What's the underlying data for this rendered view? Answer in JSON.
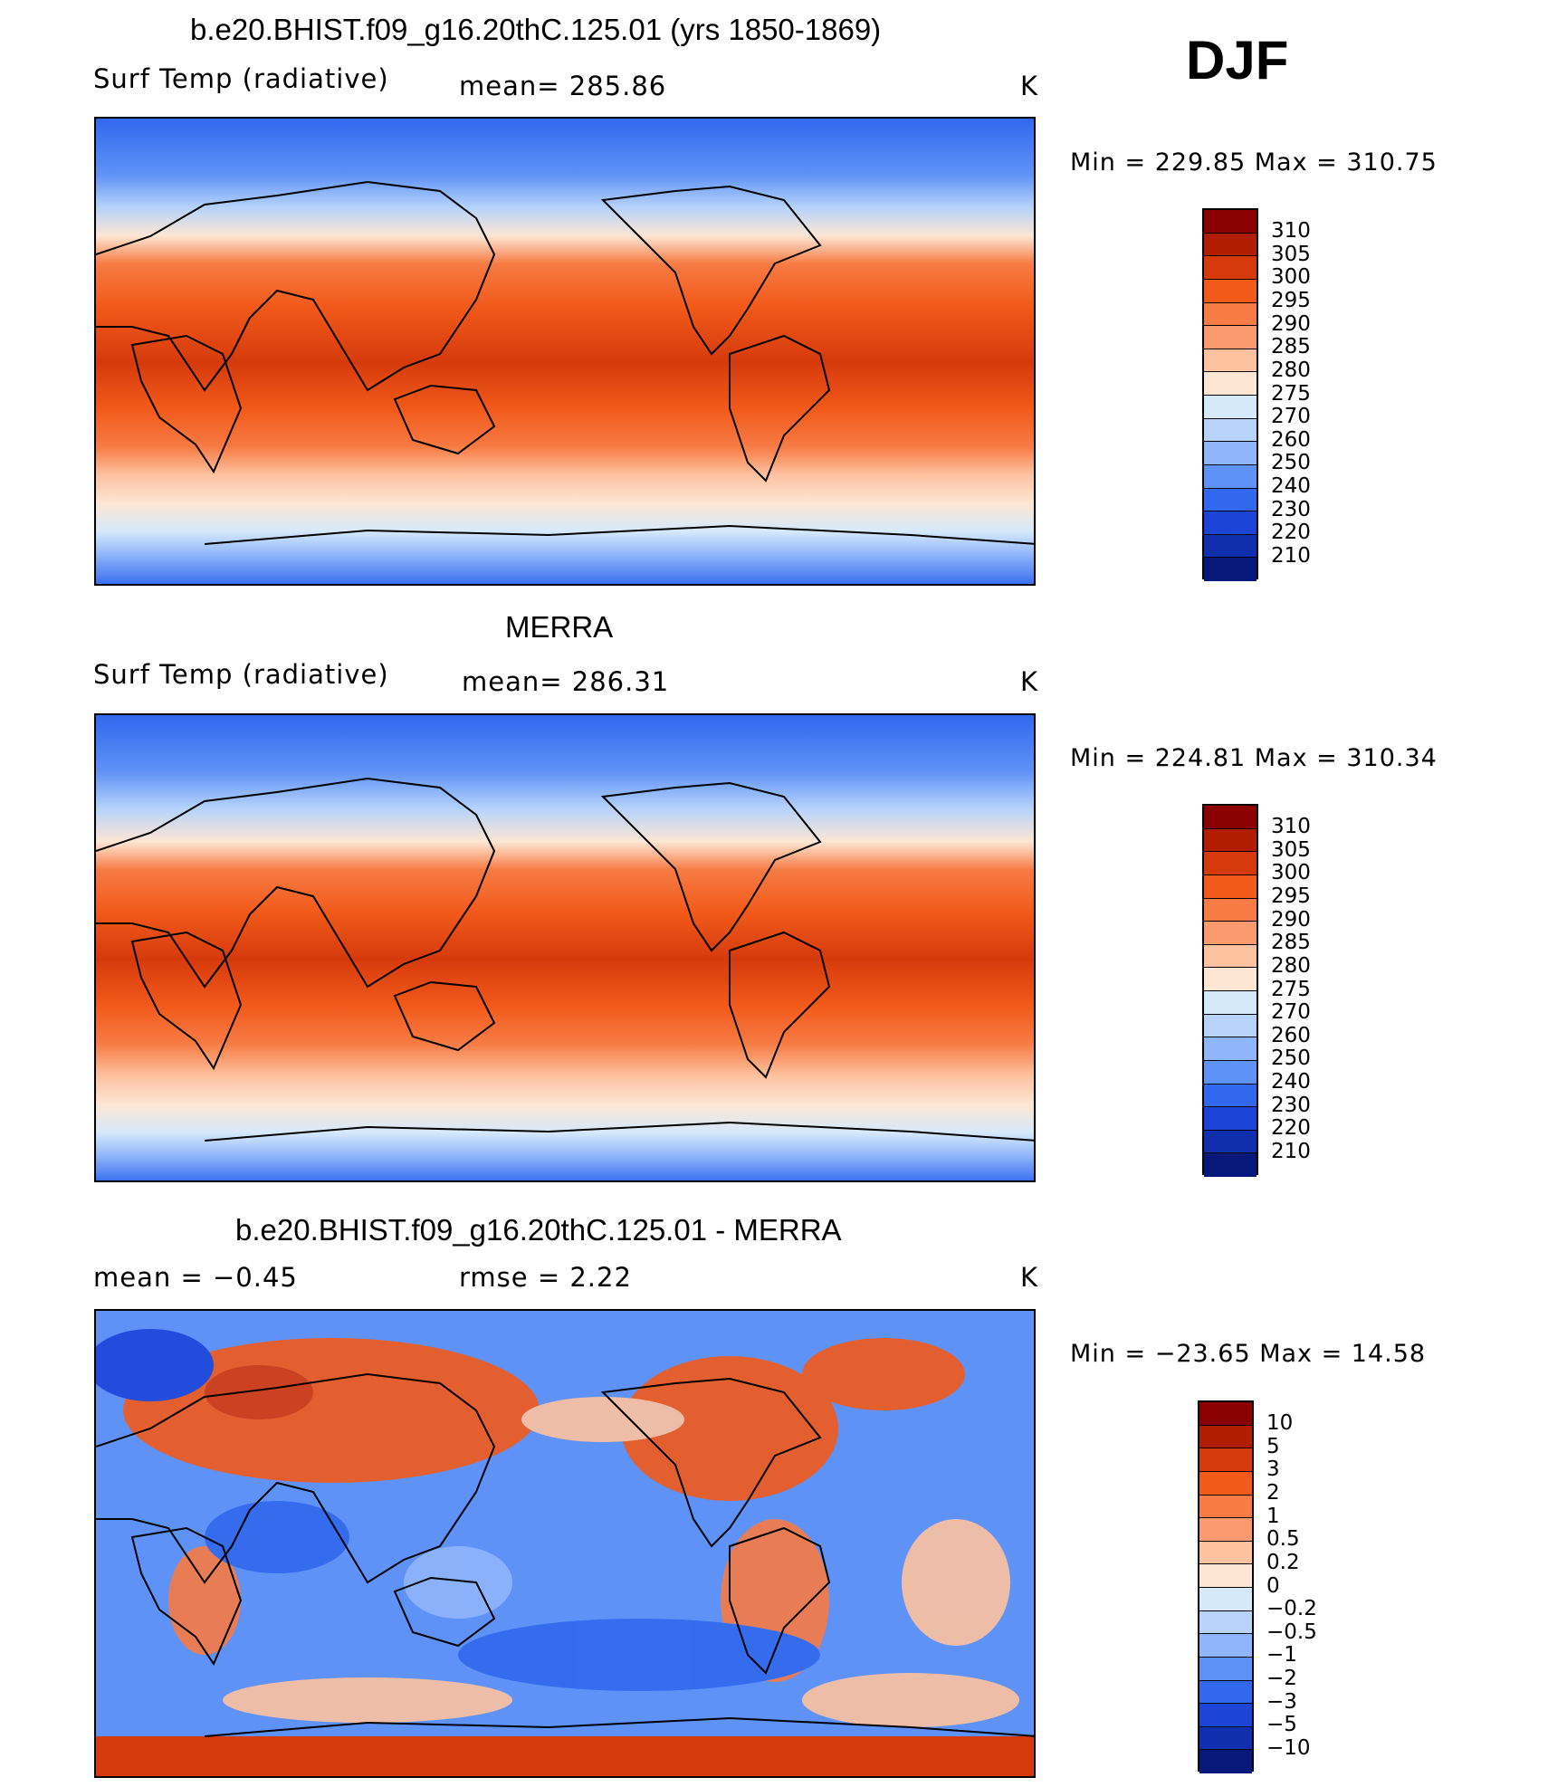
{
  "season": "DJF",
  "panels": [
    {
      "title": "b.e20.BHIST.f09_g16.20thC.125.01 (yrs 1850-1869)",
      "left_label": "Surf Temp (radiative)",
      "center_label": "mean=  285.86",
      "units": "K",
      "minmax": "Min  =  229.85  Max  =  310.75",
      "colorbar": {
        "labels": [
          "310",
          "305",
          "300",
          "295",
          "290",
          "285",
          "280",
          "275",
          "270",
          "260",
          "250",
          "240",
          "230",
          "220",
          "210"
        ],
        "colors": [
          "#8b0000",
          "#b01d00",
          "#d63a0c",
          "#f25a1a",
          "#f77b44",
          "#fb9a6e",
          "#fdc2a0",
          "#fde6d4",
          "#d6e9fb",
          "#b7d3fb",
          "#8fb5fb",
          "#5f92f7",
          "#3168ee",
          "#1c45d8",
          "#102fae",
          "#06197b"
        ]
      },
      "map_note": "Surface radiative temperature field"
    },
    {
      "title": "MERRA",
      "left_label": "Surf Temp (radiative)",
      "center_label": "mean=  286.31",
      "units": "K",
      "minmax": "Min  =  224.81  Max  =  310.34",
      "colorbar": {
        "labels": [
          "310",
          "305",
          "300",
          "295",
          "290",
          "285",
          "280",
          "275",
          "270",
          "260",
          "250",
          "240",
          "230",
          "220",
          "210"
        ],
        "colors": [
          "#8b0000",
          "#b01d00",
          "#d63a0c",
          "#f25a1a",
          "#f77b44",
          "#fb9a6e",
          "#fdc2a0",
          "#fde6d4",
          "#d6e9fb",
          "#b7d3fb",
          "#8fb5fb",
          "#5f92f7",
          "#3168ee",
          "#1c45d8",
          "#102fae",
          "#06197b"
        ]
      },
      "map_note": "Reanalysis surface radiative temperature field"
    },
    {
      "title": "b.e20.BHIST.f09_g16.20thC.125.01 - MERRA",
      "left_label": "mean  =     −0.45",
      "center_label": "rmse  =     2.22",
      "units": "K",
      "minmax": "Min  =  −23.65  Max  =    14.58",
      "colorbar": {
        "labels": [
          "10",
          "5",
          "3",
          "2",
          "1",
          "0.5",
          "0.2",
          "0",
          "−0.2",
          "−0.5",
          "−1",
          "−2",
          "−3",
          "−5",
          "−10"
        ],
        "colors": [
          "#8b0000",
          "#b01d00",
          "#d63a0c",
          "#f25a1a",
          "#f77b44",
          "#fb9a6e",
          "#fdc2a0",
          "#fde6d4",
          "#d6e9fb",
          "#b7d3fb",
          "#8fb5fb",
          "#5f92f7",
          "#3168ee",
          "#1c45d8",
          "#102fae",
          "#06197b"
        ]
      },
      "map_note": "Difference field"
    }
  ]
}
